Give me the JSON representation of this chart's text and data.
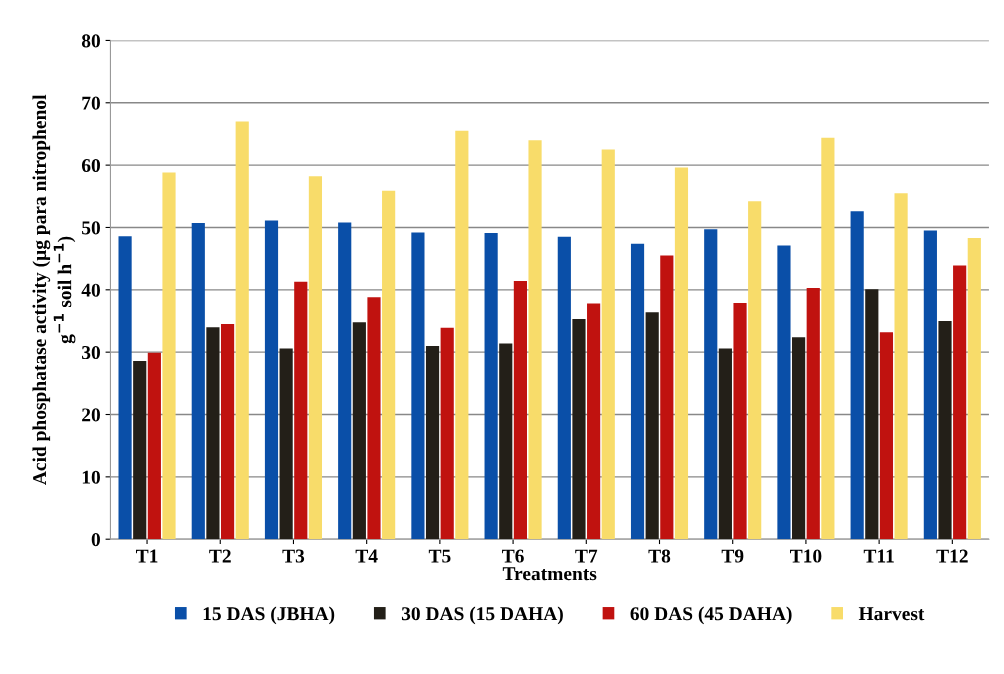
{
  "chart_data": {
    "type": "bar",
    "xlabel": "Treatments",
    "ylabel": "Acid phosphatase activity (µg para nitrophenol\ng$^{−1}$ soil h$^{−1}$)",
    "categories": [
      "T1",
      "T2",
      "T3",
      "T4",
      "T5",
      "T6",
      "T7",
      "T8",
      "T9",
      "T10",
      "T11",
      "T12"
    ],
    "series": [
      {
        "name": "15 DAS (JBHA)",
        "color": "#0a4fa8",
        "values": [
          48.6,
          50.7,
          51.1,
          50.8,
          49.2,
          49.1,
          48.5,
          47.4,
          49.7,
          47.1,
          52.6,
          49.5
        ]
      },
      {
        "name": "30 DAS (15 DAHA)",
        "color": "#231f18",
        "values": [
          28.6,
          34.0,
          30.6,
          34.8,
          31.0,
          31.4,
          35.3,
          36.4,
          30.6,
          32.4,
          40.1,
          35.0
        ]
      },
      {
        "name": "60 DAS (45 DAHA)",
        "color": "#c0120f",
        "values": [
          29.9,
          34.5,
          41.3,
          38.8,
          33.9,
          41.4,
          37.8,
          45.5,
          37.9,
          40.3,
          33.2,
          43.9
        ]
      },
      {
        "name": "Harvest",
        "color": "#f8dc6a",
        "values": [
          58.8,
          67.0,
          58.2,
          55.9,
          65.5,
          64.0,
          62.5,
          59.6,
          54.2,
          64.4,
          55.5,
          48.3
        ]
      }
    ],
    "ylim": [
      0,
      80
    ],
    "yticks": [
      0,
      10,
      20,
      30,
      40,
      50,
      60,
      70,
      80
    ],
    "grid": "y",
    "legend": "bottom"
  }
}
